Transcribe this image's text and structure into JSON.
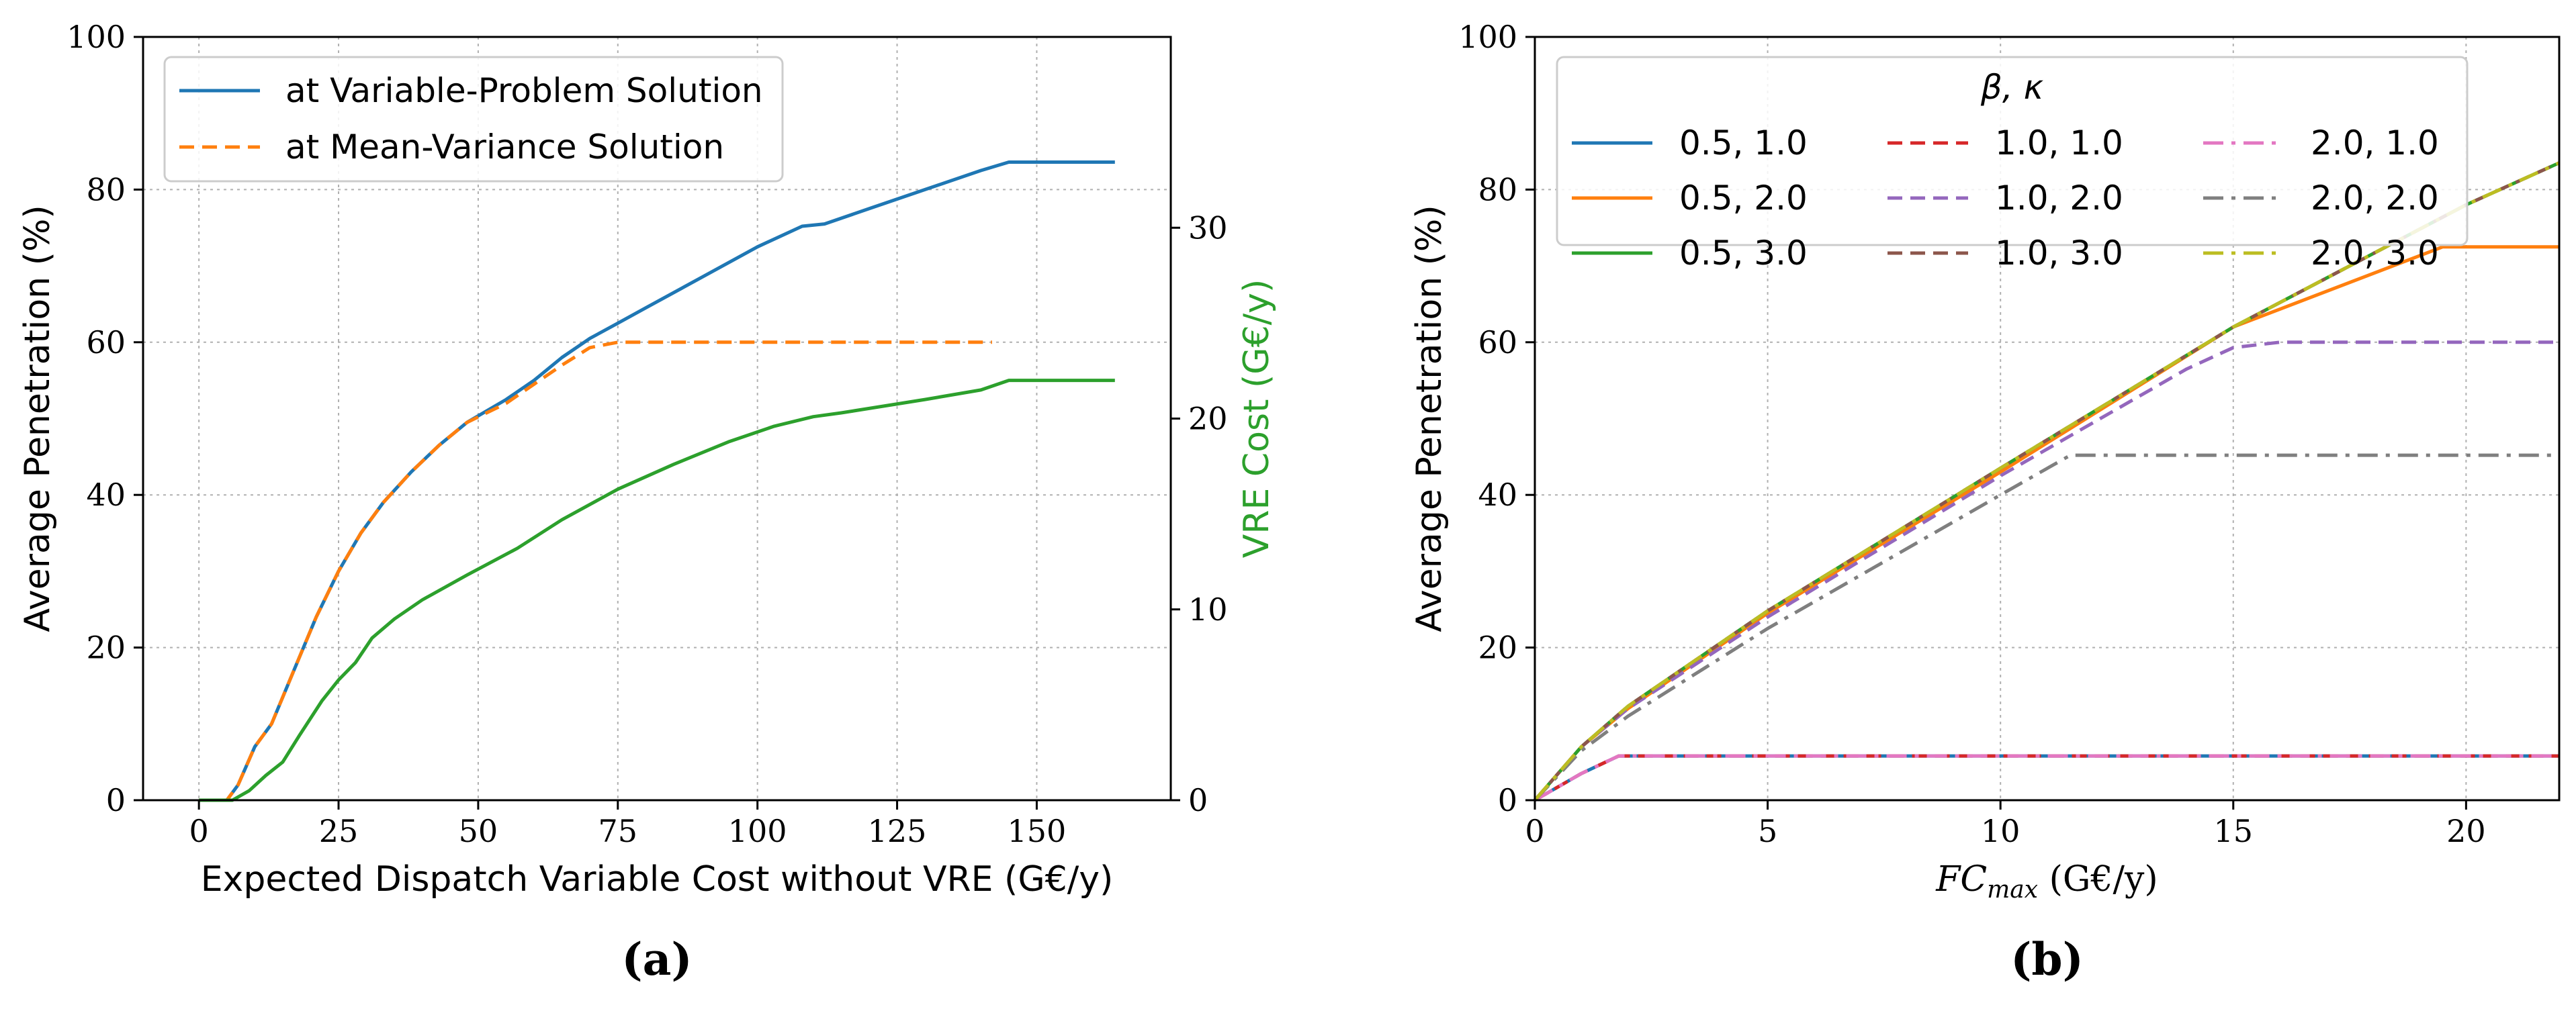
{
  "colors": {
    "c0": "#1f77b4",
    "c1": "#ff7f0e",
    "c2": "#2ca02c",
    "c3": "#d62728",
    "c4": "#9467bd",
    "c5": "#8c564b",
    "c6": "#e377c2",
    "c7": "#7f7f7f",
    "c8": "#bcbd22"
  },
  "chart_data": [
    {
      "type": "line",
      "panel_label": "(a)",
      "xlabel": "Expected Dispatch Variable Cost without VRE (G€/y)",
      "ylabel": "Average Penetration (%)",
      "y2label": "VRE Cost (G€/y)",
      "xlim": [
        -10,
        174
      ],
      "ylim": [
        0,
        100
      ],
      "y2lim": [
        0,
        40
      ],
      "xticks": [
        0,
        25,
        50,
        75,
        100,
        125,
        150
      ],
      "yticks": [
        0,
        20,
        40,
        60,
        80,
        100
      ],
      "y2ticks": [
        0,
        10,
        20,
        30
      ],
      "grid": true,
      "legend_position": "upper-left",
      "series": [
        {
          "name": "at Variable-Problem Solution",
          "color_key": "c0",
          "style": "solid",
          "axis": "left",
          "points": [
            [
              0,
              0
            ],
            [
              5,
              0
            ],
            [
              7,
              2
            ],
            [
              10,
              7
            ],
            [
              13,
              10
            ],
            [
              17,
              17
            ],
            [
              21,
              24
            ],
            [
              25,
              30
            ],
            [
              29,
              35
            ],
            [
              33,
              39
            ],
            [
              38,
              43
            ],
            [
              43,
              46.5
            ],
            [
              48,
              49.5
            ],
            [
              55,
              52.5
            ],
            [
              60,
              55
            ],
            [
              65,
              58
            ],
            [
              70,
              60.5
            ],
            [
              75,
              62.5
            ],
            [
              80,
              64.5
            ],
            [
              90,
              68.5
            ],
            [
              100,
              72.5
            ],
            [
              108,
              75.2
            ],
            [
              112,
              75.5
            ],
            [
              120,
              77.5
            ],
            [
              130,
              80
            ],
            [
              140,
              82.5
            ],
            [
              145,
              83.6
            ],
            [
              164,
              83.6
            ]
          ]
        },
        {
          "name": "at Mean-Variance Solution",
          "color_key": "c1",
          "style": "dashed",
          "axis": "left",
          "points": [
            [
              0,
              0
            ],
            [
              5,
              0
            ],
            [
              7,
              2
            ],
            [
              10,
              7
            ],
            [
              13,
              10
            ],
            [
              17,
              17
            ],
            [
              21,
              24
            ],
            [
              25,
              30
            ],
            [
              29,
              35
            ],
            [
              33,
              39
            ],
            [
              38,
              43
            ],
            [
              43,
              46.5
            ],
            [
              48,
              49.5
            ],
            [
              55,
              52
            ],
            [
              60,
              54.5
            ],
            [
              65,
              57
            ],
            [
              70,
              59.3
            ],
            [
              75,
              60
            ],
            [
              142,
              60
            ]
          ]
        },
        {
          "name": "VRE Cost",
          "color_key": "c2",
          "style": "solid",
          "axis": "right",
          "points": [
            [
              0,
              0
            ],
            [
              6,
              0
            ],
            [
              9,
              0.5
            ],
            [
              12,
              1.3
            ],
            [
              15,
              2
            ],
            [
              18,
              3.4
            ],
            [
              22,
              5.2
            ],
            [
              25,
              6.3
            ],
            [
              28,
              7.2
            ],
            [
              31,
              8.5
            ],
            [
              35,
              9.5
            ],
            [
              40,
              10.5
            ],
            [
              48,
              11.8
            ],
            [
              57,
              13.2
            ],
            [
              65,
              14.7
            ],
            [
              75,
              16.3
            ],
            [
              85,
              17.6
            ],
            [
              95,
              18.8
            ],
            [
              103,
              19.6
            ],
            [
              110,
              20.1
            ],
            [
              115,
              20.3
            ],
            [
              130,
              21
            ],
            [
              140,
              21.5
            ],
            [
              145,
              22
            ],
            [
              164,
              22
            ]
          ]
        }
      ]
    },
    {
      "type": "line",
      "panel_label": "(b)",
      "xlabel_main": "FC",
      "xlabel_sub": "max",
      "xlabel_unit": " (G€/y)",
      "ylabel": "Average Penetration (%)",
      "xlim": [
        0,
        22
      ],
      "ylim": [
        0,
        100
      ],
      "xticks": [
        0,
        5,
        10,
        15,
        20
      ],
      "yticks": [
        0,
        20,
        40,
        60,
        80,
        100
      ],
      "grid": true,
      "legend_title": "β, κ",
      "legend_position": "upper-left",
      "series": [
        {
          "name": "0.5, 1.0",
          "color_key": "c0",
          "style": "solid",
          "points": [
            [
              0,
              0
            ],
            [
              1,
              3.5
            ],
            [
              1.8,
              5.8
            ],
            [
              22,
              5.8
            ]
          ]
        },
        {
          "name": "0.5, 2.0",
          "color_key": "c1",
          "style": "solid",
          "points": [
            [
              0,
              0
            ],
            [
              1,
              7
            ],
            [
              2,
              12
            ],
            [
              5,
              24.5
            ],
            [
              10,
              43
            ],
            [
              15,
              62
            ],
            [
              19.5,
              72.5
            ],
            [
              22,
              72.5
            ]
          ]
        },
        {
          "name": "0.5, 3.0",
          "color_key": "c2",
          "style": "solid",
          "points": [
            [
              0,
              0
            ],
            [
              1,
              7
            ],
            [
              2,
              12.3
            ],
            [
              5,
              24.8
            ],
            [
              10,
              43.5
            ],
            [
              15,
              62
            ],
            [
              20,
              78
            ],
            [
              22,
              83.5
            ]
          ]
        },
        {
          "name": "1.0, 1.0",
          "color_key": "c3",
          "style": "dashed",
          "points": [
            [
              0,
              0
            ],
            [
              1,
              3.5
            ],
            [
              1.8,
              5.8
            ],
            [
              22,
              5.8
            ]
          ]
        },
        {
          "name": "1.0, 2.0",
          "color_key": "c4",
          "style": "dashed",
          "points": [
            [
              0,
              0
            ],
            [
              1,
              7
            ],
            [
              2,
              12
            ],
            [
              5,
              24
            ],
            [
              10,
              42.5
            ],
            [
              14,
              56.5
            ],
            [
              15,
              59.3
            ],
            [
              16,
              60
            ],
            [
              22,
              60
            ]
          ]
        },
        {
          "name": "1.0, 3.0",
          "color_key": "c5",
          "style": "dashed",
          "points": [
            [
              0,
              0
            ],
            [
              1,
              7
            ],
            [
              2,
              12.3
            ],
            [
              5,
              24.8
            ],
            [
              10,
              43.5
            ],
            [
              15,
              62
            ],
            [
              20,
              78
            ],
            [
              22,
              83.5
            ]
          ]
        },
        {
          "name": "2.0, 1.0",
          "color_key": "c6",
          "style": "dashdot",
          "points": [
            [
              0,
              0
            ],
            [
              1,
              3.5
            ],
            [
              1.8,
              5.8
            ],
            [
              22,
              5.8
            ]
          ]
        },
        {
          "name": "2.0, 2.0",
          "color_key": "c7",
          "style": "dashdot",
          "points": [
            [
              0,
              0
            ],
            [
              1,
              6.5
            ],
            [
              2,
              11
            ],
            [
              5,
              22.5
            ],
            [
              10,
              40
            ],
            [
              11.5,
              45.2
            ],
            [
              22,
              45.2
            ]
          ]
        },
        {
          "name": "2.0, 3.0",
          "color_key": "c8",
          "style": "dashdot",
          "points": [
            [
              0,
              0
            ],
            [
              1,
              7
            ],
            [
              2,
              12.3
            ],
            [
              5,
              24.8
            ],
            [
              10,
              43.5
            ],
            [
              15,
              62
            ],
            [
              20,
              78
            ],
            [
              22,
              83.5
            ]
          ]
        }
      ]
    }
  ]
}
